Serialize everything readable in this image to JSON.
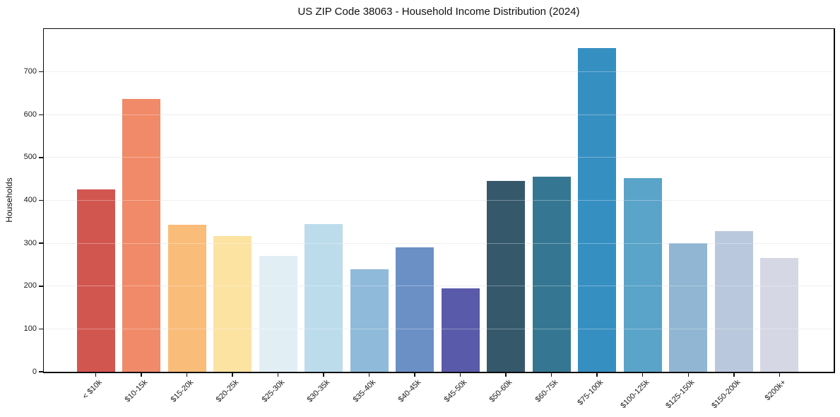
{
  "chart_data": {
    "type": "bar",
    "title": "US ZIP Code 38063 - Household Income Distribution (2024)",
    "xlabel": "",
    "ylabel": "Households",
    "ylim": [
      0,
      800
    ],
    "yticks": [
      0,
      100,
      200,
      300,
      400,
      500,
      600,
      700
    ],
    "grid": true,
    "legend_position": "none",
    "categories": [
      "< $10k",
      "$10-15k",
      "$15-20k",
      "$20-25k",
      "$25-30k",
      "$30-35k",
      "$35-40k",
      "$40-45k",
      "$45-50k",
      "$50-60k",
      "$60-75k",
      "$75-100k",
      "$100-125k",
      "$125-150k",
      "$150-200k",
      "$200k+"
    ],
    "values": [
      426,
      637,
      343,
      316,
      270,
      344,
      239,
      291,
      194,
      445,
      456,
      756,
      452,
      301,
      329,
      266
    ],
    "bar_colors": [
      "#d25650",
      "#f18a68",
      "#fabc79",
      "#fde3a2",
      "#e1eff5",
      "#bcdcec",
      "#8fbada",
      "#6a90c5",
      "#5a5aaa",
      "#35596b",
      "#357792",
      "#368fc1",
      "#5aa3c9",
      "#90b6d3",
      "#b9c8dd",
      "#d6d7e4"
    ],
    "gridline_color": "#e7e7e7",
    "spine_color": "#0b0b0b",
    "text_color": "#1a1a1a"
  }
}
